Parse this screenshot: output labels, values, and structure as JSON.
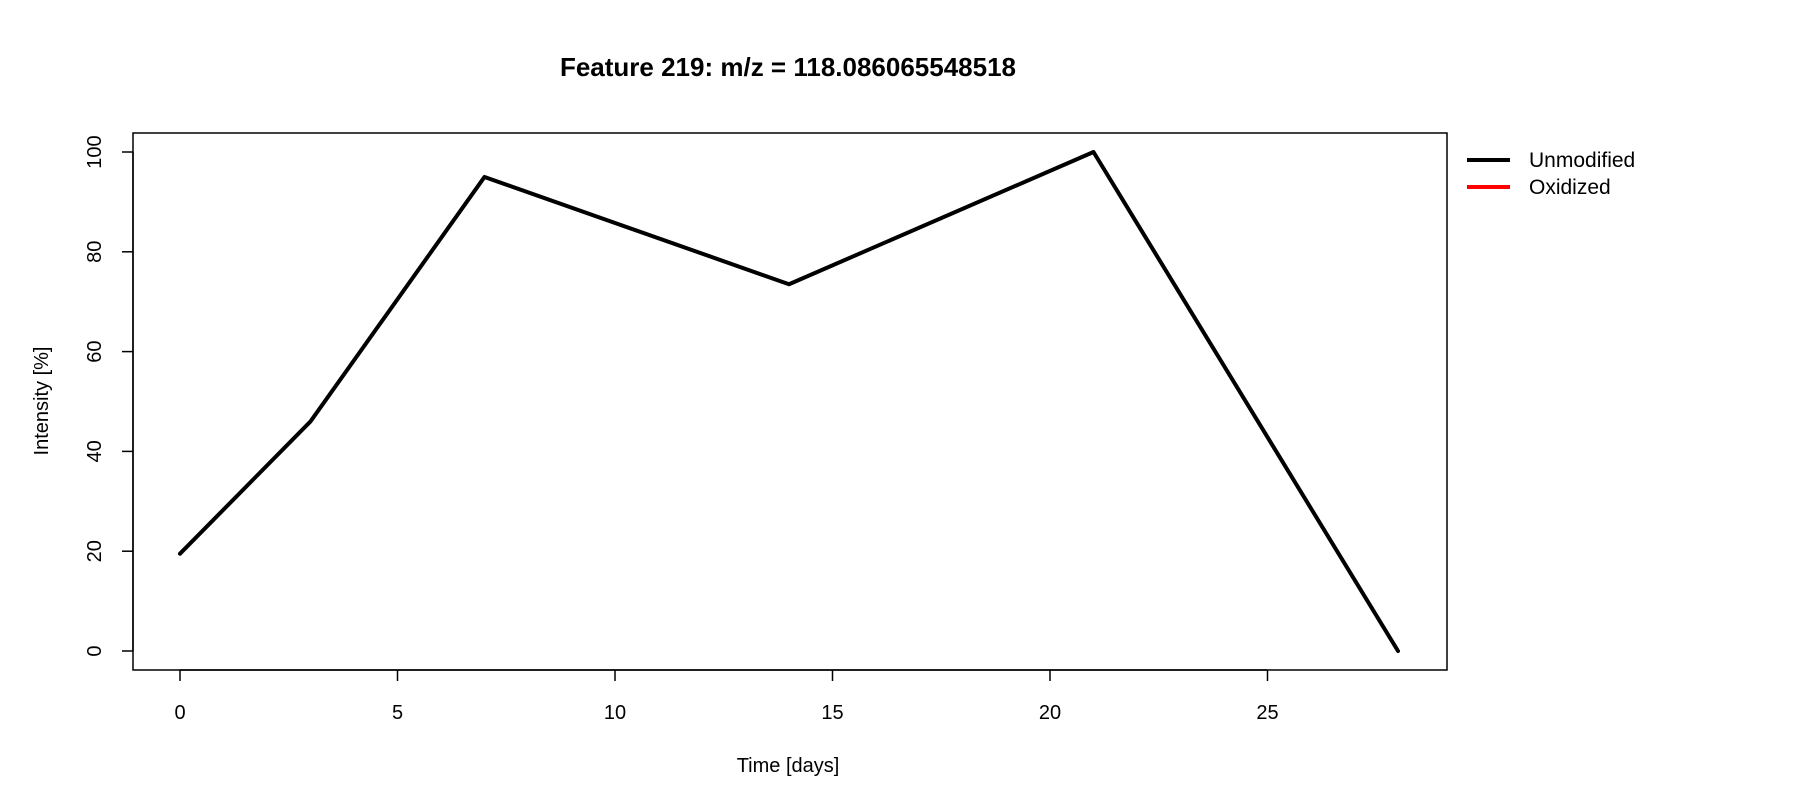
{
  "chart_data": {
    "type": "line",
    "title": "Feature 219: m/z = 118.086065548518",
    "xlabel": "Time [days]",
    "ylabel": "Intensity [%]",
    "xlim": [
      0,
      28
    ],
    "ylim": [
      0,
      100
    ],
    "xticks": [
      0,
      5,
      10,
      15,
      20,
      25
    ],
    "yticks": [
      0,
      20,
      40,
      60,
      80,
      100
    ],
    "grid": false,
    "legend_position": "outside-top-right",
    "series": [
      {
        "name": "Unmodified",
        "color": "#000000",
        "x": [
          0,
          3,
          7,
          14,
          21,
          28
        ],
        "y": [
          19.5,
          46,
          95,
          73.5,
          100,
          0
        ]
      },
      {
        "name": "Oxidized",
        "color": "#ff0000",
        "x": [],
        "y": []
      }
    ]
  }
}
